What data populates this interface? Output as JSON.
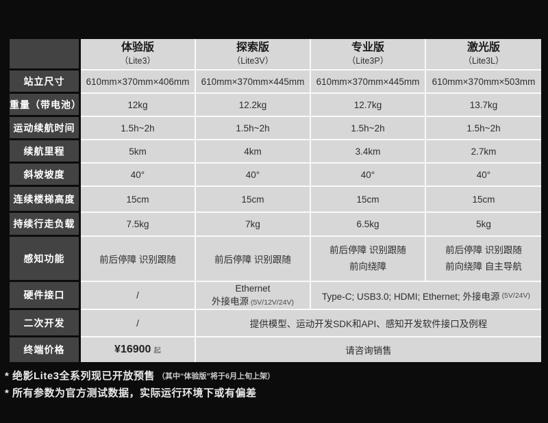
{
  "colors": {
    "background": "#0c0c0c",
    "label_cell": "#434343",
    "data_cell": "#d7d7d7",
    "separator": "#fafafa",
    "label_text": "#ffffff",
    "data_text": "#2d2d2d"
  },
  "table": {
    "columns": [
      {
        "name": "体验版",
        "model": "（Lite3）"
      },
      {
        "name": "探索版",
        "model": "（Lite3V）"
      },
      {
        "name": "专业版",
        "model": "（Lite3P）"
      },
      {
        "name": "激光版",
        "model": "（Lite3L）"
      }
    ],
    "specs": [
      {
        "label": "站立尺寸",
        "cells": [
          "610mm×370mm×406mm",
          "610mm×370mm×445mm",
          "610mm×370mm×445mm",
          "610mm×370mm×503mm"
        ]
      },
      {
        "label": "重量（带电池）",
        "cells": [
          "12kg",
          "12.2kg",
          "12.7kg",
          "13.7kg"
        ]
      },
      {
        "label": "运动续航时间",
        "cells": [
          "1.5h~2h",
          "1.5h~2h",
          "1.5h~2h",
          "1.5h~2h"
        ]
      },
      {
        "label": "续航里程",
        "cells": [
          "5km",
          "4km",
          "3.4km",
          "2.7km"
        ]
      },
      {
        "label": "斜坡坡度",
        "cells": [
          "40°",
          "40°",
          "40°",
          "40°"
        ]
      },
      {
        "label": "连续楼梯高度",
        "cells": [
          "15cm",
          "15cm",
          "15cm",
          "15cm"
        ]
      },
      {
        "label": "持续行走负载",
        "cells": [
          "7.5kg",
          "7kg",
          "6.5kg",
          "5kg"
        ]
      }
    ],
    "perception": {
      "label": "感知功能",
      "c1": "前后停障 识别跟随",
      "c2": "前后停障 识别跟随",
      "c3_line1": "前后停障 识别跟随",
      "c3_line2": "前向绕障",
      "c4_line1": "前后停障 识别跟随",
      "c4_line2": "前向绕障 自主导航"
    },
    "hardware": {
      "label": "硬件接口",
      "c1": "/",
      "c2_line1": "Ethernet",
      "c2_line2": "外接电源",
      "c2_small": "(5V/12V/24V)",
      "c34": "Type-C; USB3.0; HDMI; Ethernet; 外接电源",
      "c34_small": "(5V/24V)"
    },
    "development": {
      "label": "二次开发",
      "c1": "/",
      "c234": "提供模型、运动开发SDK和API、感知开发软件接口及例程"
    },
    "price": {
      "label": "终端价格",
      "c1_value": "¥16900",
      "c1_suffix": "起",
      "c234": "请咨询销售"
    }
  },
  "notes": [
    {
      "main": "* 绝影Lite3全系列现已开放预售",
      "small": "（其中“体验版”将于6月上旬上架）"
    },
    {
      "main": "* 所有参数为官方测试数据，实际运行环境下或有偏差",
      "small": ""
    }
  ]
}
